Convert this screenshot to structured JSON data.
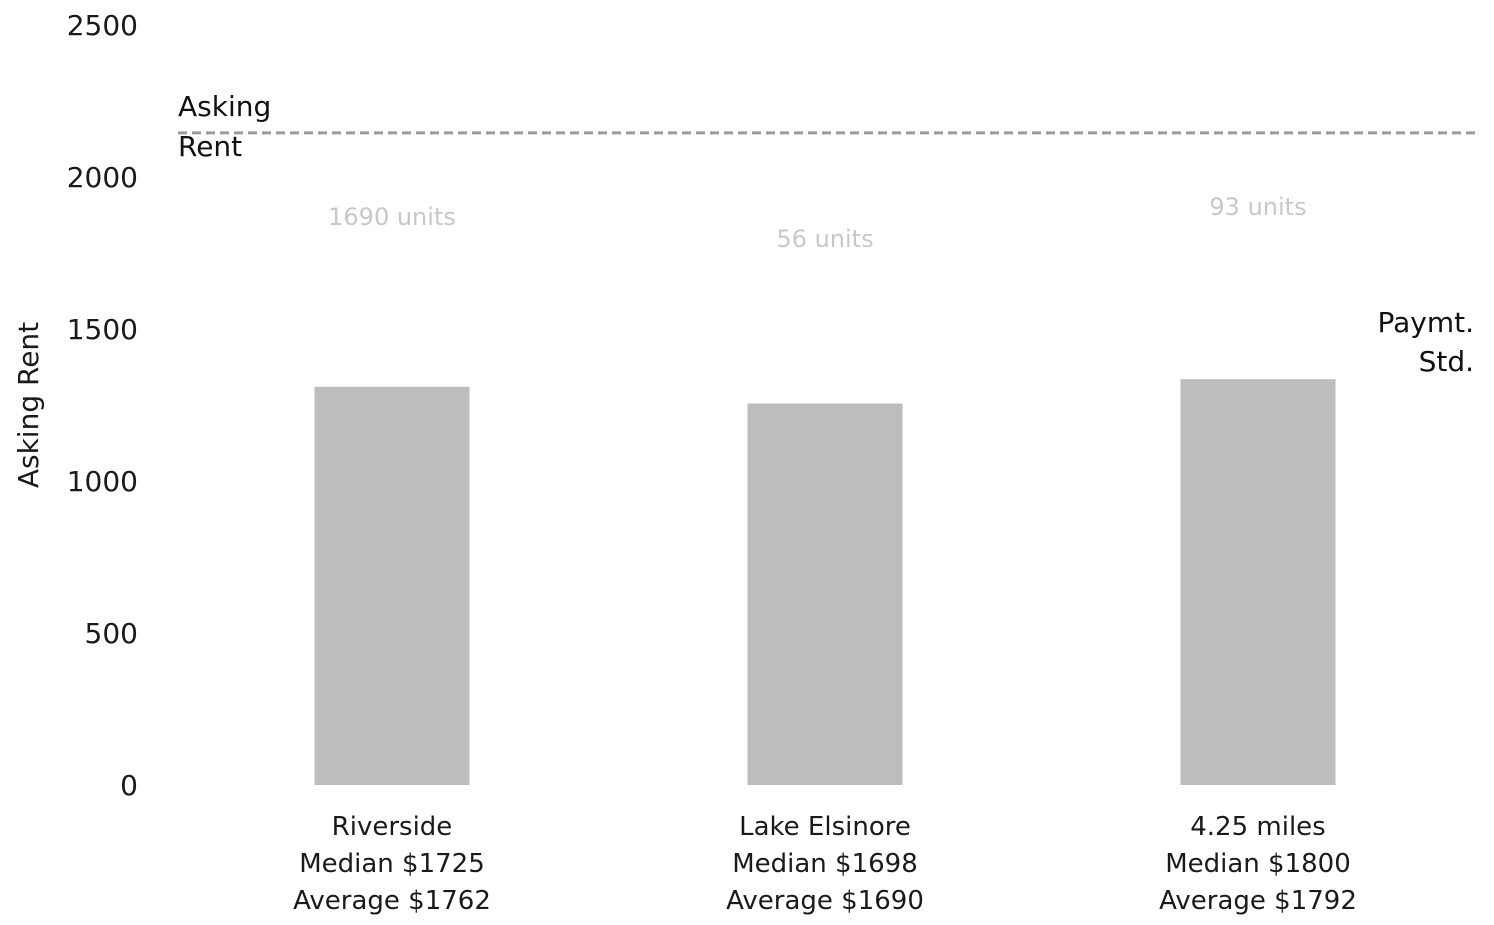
{
  "chart_data": {
    "type": "bar",
    "ylabel": "Asking Rent",
    "ylim": [
      0,
      2500
    ],
    "yticks": [
      0,
      500,
      1000,
      1500,
      2000,
      2500
    ],
    "categories": [
      {
        "lines": [
          "Riverside",
          "Median $1725",
          "Average $1762"
        ],
        "value": 1310,
        "units_label": "1690 units"
      },
      {
        "lines": [
          "Lake Elsinore",
          "Median $1698",
          "Average $1690"
        ],
        "value": 1255,
        "units_label": "56 units"
      },
      {
        "lines": [
          "4.25 miles",
          "Median $1800",
          "Average $1792"
        ],
        "value": 1335,
        "units_label": "93 units"
      }
    ],
    "reference_lines": [
      {
        "label_lines": [
          "Asking",
          "Rent"
        ],
        "value": 2145,
        "style": "dashed"
      }
    ],
    "annotations": [
      {
        "label_lines": [
          "Paymt.",
          "Std."
        ]
      }
    ],
    "colors": {
      "bar": "#bdbdbf",
      "ref_line": "#9a9a9a",
      "units_text": "#c8c8c8"
    },
    "grid": false,
    "legend": "none"
  }
}
